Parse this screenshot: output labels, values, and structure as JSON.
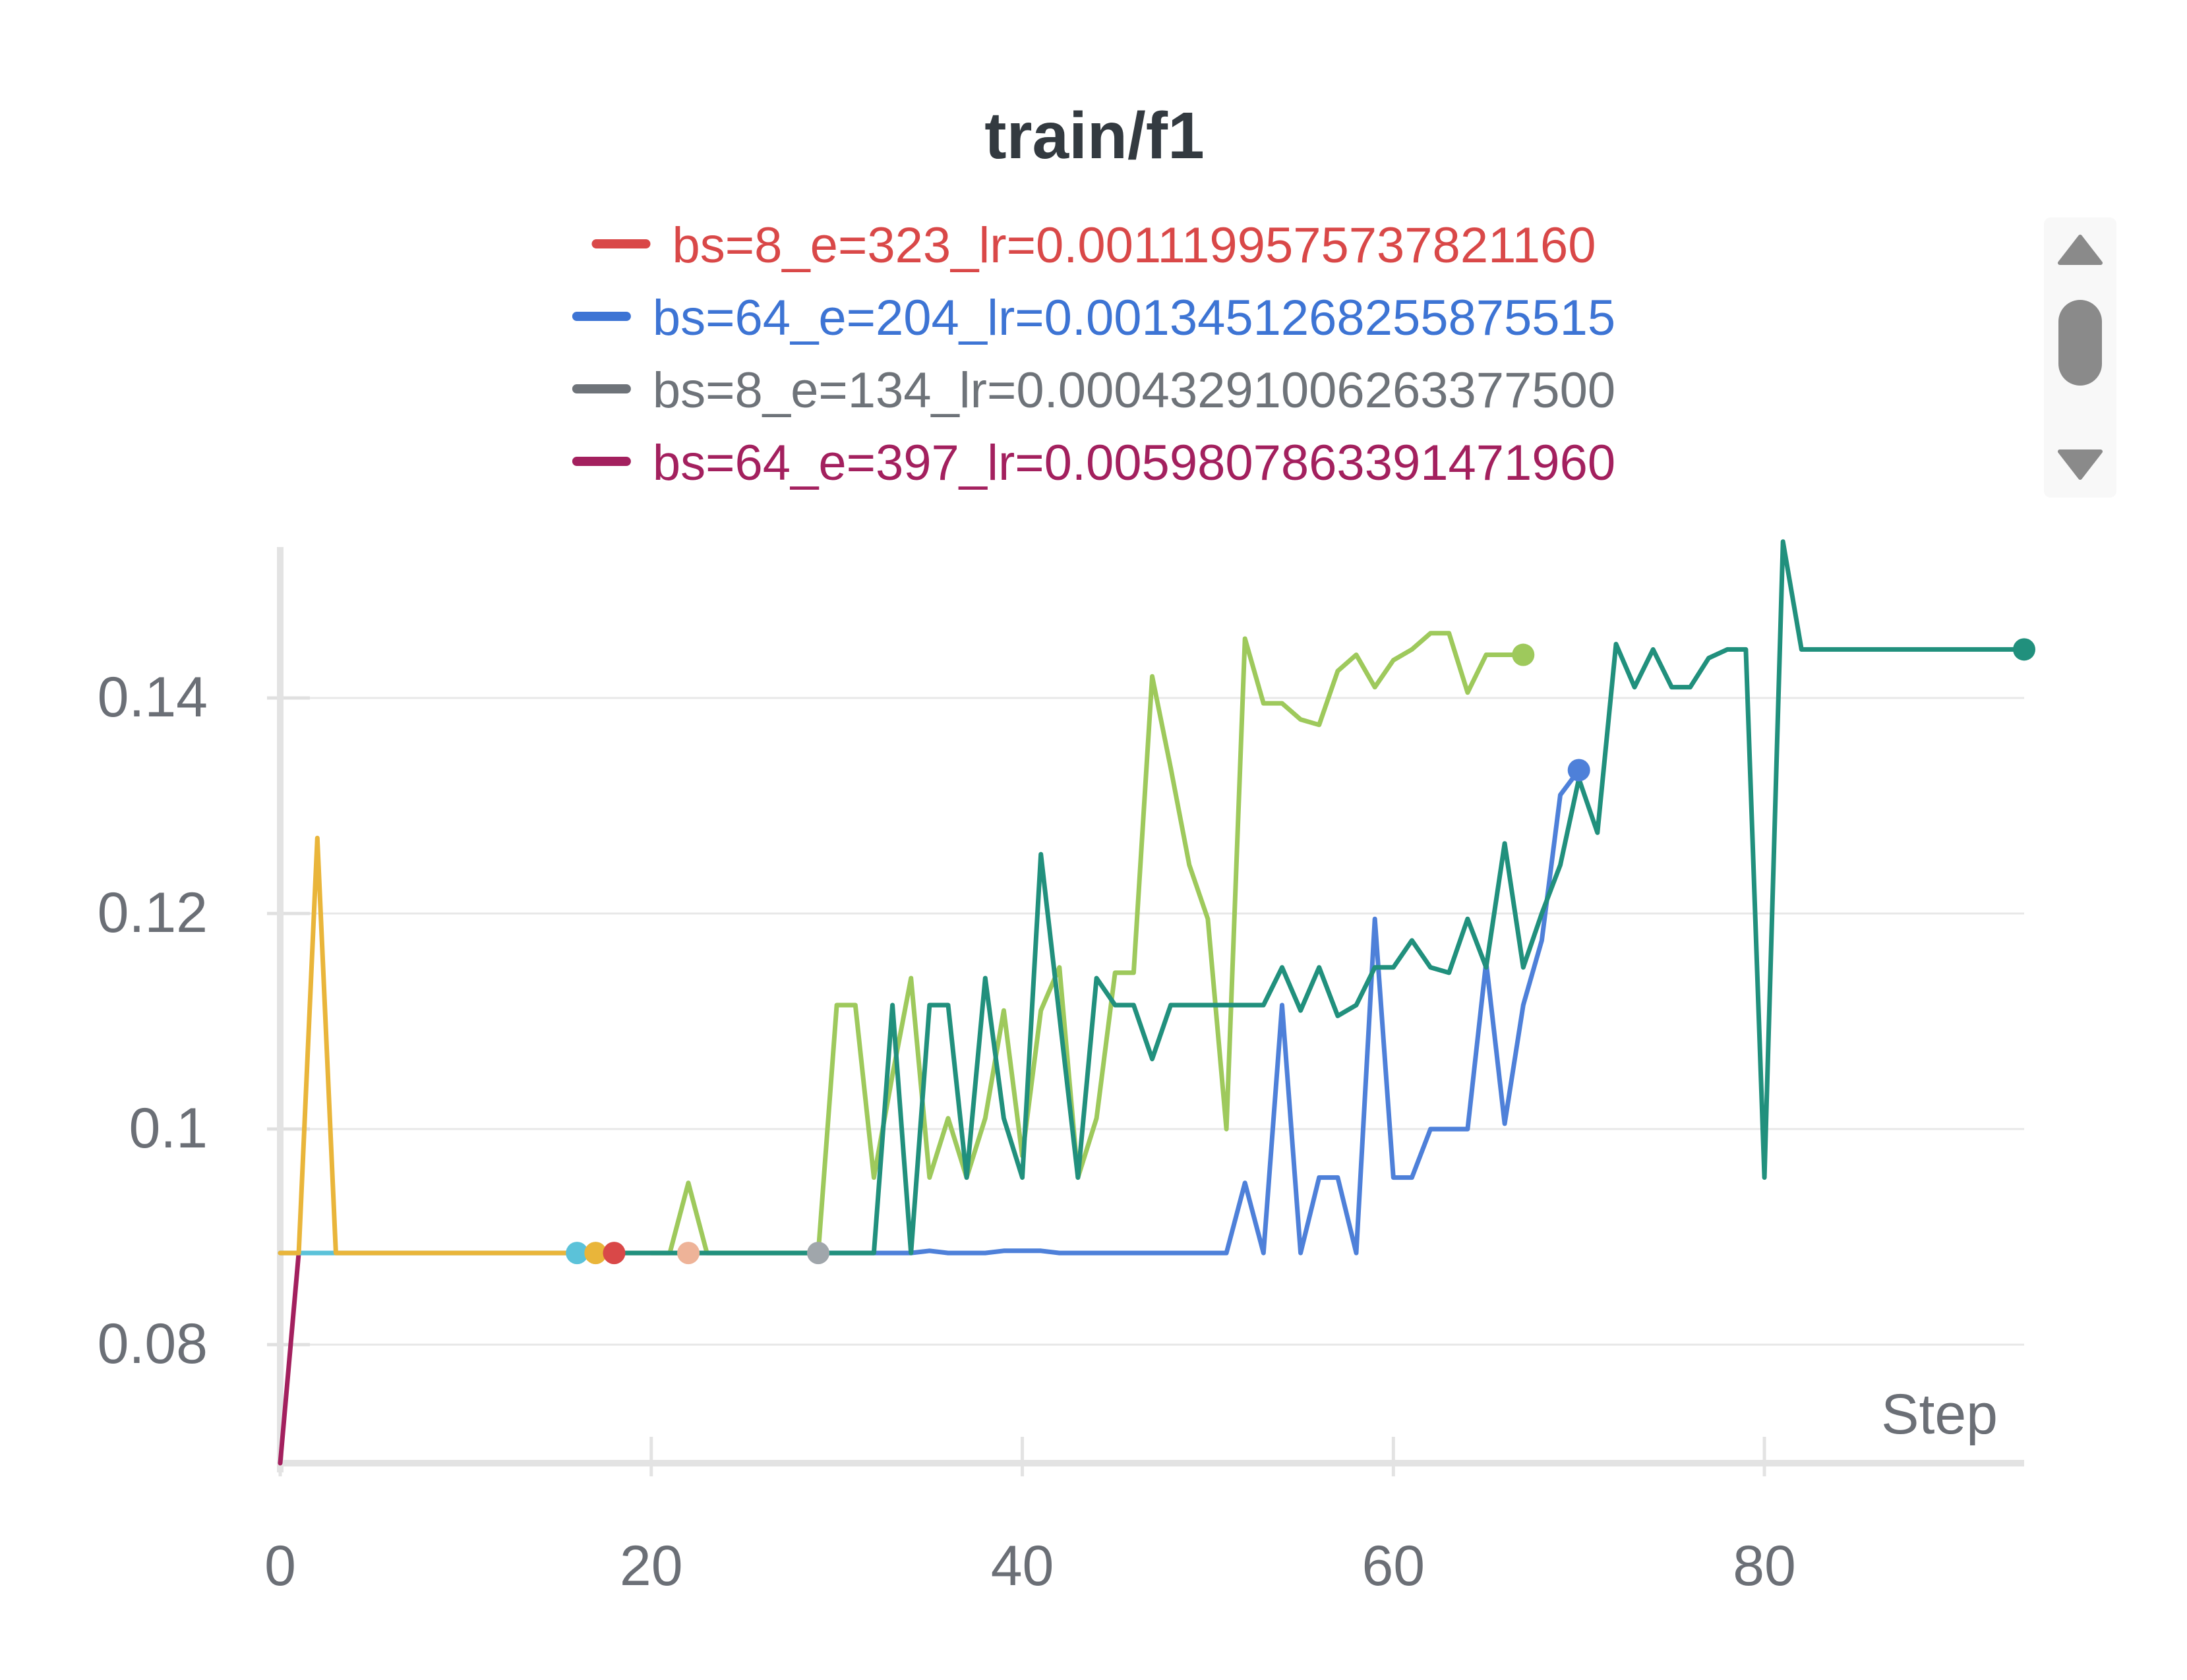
{
  "chart_data": {
    "type": "line",
    "title": "train/f1",
    "xlabel": "Step",
    "ylabel": "",
    "xlim": [
      0,
      94
    ],
    "ylim": [
      0.069,
      0.154
    ],
    "xticks": [
      0,
      20,
      40,
      60,
      80
    ],
    "yticks": [
      0.08,
      0.1,
      0.12,
      0.14
    ],
    "xtick_labels": [
      "0",
      "20",
      "40",
      "60",
      "80"
    ],
    "ytick_labels": [
      "0.08",
      "0.1",
      "0.12",
      "0.14"
    ],
    "grid": true,
    "legend_position": "top",
    "legend": [
      {
        "label": "bs=8_e=323_lr=0.0011199575737821160",
        "color": "#d94848"
      },
      {
        "label": "bs=64_e=204_lr=0.0013451268255875515",
        "color": "#3d74d4"
      },
      {
        "label": "bs=8_e=134_lr=0.00043291006263377500",
        "color": "#6e7379"
      },
      {
        "label": "bs=64_e=397_lr=0.0059807863391471960",
        "color": "#a3205e"
      }
    ],
    "series": [
      {
        "color": "#a3205e",
        "x": [
          0,
          1
        ],
        "y": [
          0.069,
          0.0885
        ]
      },
      {
        "color": "#5bc2d9",
        "x": [
          0,
          1,
          2,
          3,
          4,
          5,
          6,
          7,
          8,
          9,
          10,
          11,
          12,
          13,
          14,
          15,
          16
        ],
        "y": [
          0.0885,
          0.0885,
          0.0885,
          0.0885,
          0.0885,
          0.0885,
          0.0885,
          0.0885,
          0.0885,
          0.0885,
          0.0885,
          0.0885,
          0.0885,
          0.0885,
          0.0885,
          0.0885,
          0.0885
        ]
      },
      {
        "color": "#e9b53a",
        "x": [
          0,
          1,
          2,
          3,
          4,
          5,
          6,
          7,
          8,
          9,
          10,
          11,
          12,
          13,
          14,
          15,
          16,
          17
        ],
        "y": [
          0.0885,
          0.0885,
          0.127,
          0.0885,
          0.0885,
          0.0885,
          0.0885,
          0.0885,
          0.0885,
          0.0885,
          0.0885,
          0.0885,
          0.0885,
          0.0885,
          0.0885,
          0.0885,
          0.0885,
          0.0885
        ]
      },
      {
        "color": "#d94848",
        "x": [
          16,
          17,
          18
        ],
        "y": [
          0.0885,
          0.0885,
          0.0885
        ]
      },
      {
        "color": "#eeb398",
        "x": [
          18,
          19,
          20,
          21,
          22
        ],
        "y": [
          0.0885,
          0.0885,
          0.0885,
          0.0885,
          0.0885
        ]
      },
      {
        "color": "#a0a6ab",
        "x": [
          22,
          23,
          24,
          25,
          26,
          27,
          28,
          29
        ],
        "y": [
          0.0885,
          0.0885,
          0.0885,
          0.0885,
          0.0885,
          0.0885,
          0.0885,
          0.0885
        ]
      },
      {
        "color": "#9ec95c",
        "x": [
          20,
          21,
          22,
          23,
          24,
          25,
          26,
          27,
          28,
          29,
          30,
          31,
          32,
          33,
          34,
          35,
          36,
          37,
          38,
          39,
          40,
          41,
          42,
          43,
          44,
          45,
          46,
          47,
          48,
          49,
          50,
          51,
          52,
          53,
          54,
          55,
          56,
          57,
          58,
          59,
          60,
          61,
          62,
          63,
          64,
          65,
          66,
          67
        ],
        "y": [
          0.0885,
          0.0885,
          0.095,
          0.0885,
          0.0885,
          0.0885,
          0.0885,
          0.0885,
          0.0885,
          0.0885,
          0.1115,
          0.1115,
          0.0955,
          0.105,
          0.114,
          0.0955,
          0.101,
          0.0955,
          0.101,
          0.111,
          0.0975,
          0.111,
          0.115,
          0.0955,
          0.101,
          0.1145,
          0.1145,
          0.142,
          0.1335,
          0.1245,
          0.1195,
          0.1,
          0.1455,
          0.1395,
          0.1395,
          0.138,
          0.1375,
          0.1425,
          0.144,
          0.141,
          0.1435,
          0.1445,
          0.146,
          0.146,
          0.1405,
          0.144,
          0.144,
          0.144
        ]
      },
      {
        "color": "#4e80d9",
        "x": [
          29,
          30,
          31,
          32,
          33,
          34,
          35,
          36,
          37,
          38,
          39,
          40,
          41,
          42,
          43,
          44,
          45,
          46,
          47,
          48,
          49,
          50,
          51,
          52,
          53,
          54,
          55,
          56,
          57,
          58,
          59,
          60,
          61,
          62,
          63,
          64,
          65,
          66,
          67,
          68,
          69,
          70
        ],
        "y": [
          0.0885,
          0.0885,
          0.0885,
          0.0885,
          0.0885,
          0.0885,
          0.0887,
          0.0885,
          0.0885,
          0.0885,
          0.0887,
          0.0887,
          0.0887,
          0.0885,
          0.0885,
          0.0885,
          0.0885,
          0.0885,
          0.0885,
          0.0885,
          0.0885,
          0.0885,
          0.0885,
          0.095,
          0.0885,
          0.1115,
          0.0885,
          0.0955,
          0.0955,
          0.0885,
          0.1195,
          0.0955,
          0.0955,
          0.1,
          0.1,
          0.1,
          0.1155,
          0.1005,
          0.1115,
          0.1175,
          0.131,
          0.1333
        ]
      },
      {
        "color": "#21907d",
        "x": [
          17,
          18,
          19,
          20,
          21,
          22,
          23,
          24,
          25,
          26,
          27,
          28,
          29,
          30,
          31,
          32,
          33,
          34,
          35,
          36,
          37,
          38,
          39,
          40,
          41,
          42,
          43,
          44,
          45,
          46,
          47,
          48,
          49,
          50,
          51,
          52,
          53,
          54,
          55,
          56,
          57,
          58,
          59,
          60,
          61,
          62,
          63,
          64,
          65,
          66,
          67,
          68,
          69,
          70,
          71,
          72,
          73,
          74,
          75,
          76,
          77,
          78,
          79,
          80,
          81,
          82,
          83,
          84,
          85,
          86,
          87,
          88,
          89,
          90,
          91,
          92,
          93,
          94
        ],
        "y": [
          0.0885,
          0.0885,
          0.0885,
          0.0885,
          0.0885,
          0.0885,
          0.0885,
          0.0885,
          0.0885,
          0.0885,
          0.0885,
          0.0885,
          0.0885,
          0.0885,
          0.0885,
          0.0885,
          0.1115,
          0.0885,
          0.1115,
          0.1115,
          0.0955,
          0.114,
          0.101,
          0.0955,
          0.1255,
          0.1105,
          0.0955,
          0.114,
          0.1115,
          0.1115,
          0.1065,
          0.1115,
          0.1115,
          0.1115,
          0.1115,
          0.1115,
          0.1115,
          0.115,
          0.111,
          0.115,
          0.1105,
          0.1115,
          0.115,
          0.115,
          0.1175,
          0.115,
          0.1145,
          0.1195,
          0.115,
          0.1265,
          0.115,
          0.12,
          0.1245,
          0.1325,
          0.1275,
          0.145,
          0.141,
          0.1445,
          0.141,
          0.141,
          0.1437,
          0.1445,
          0.1445,
          0.0955,
          0.1545,
          0.1445,
          0.1445,
          0.1445,
          0.1445,
          0.1445,
          0.1445,
          0.1445,
          0.1445,
          0.1445,
          0.1445,
          0.1445,
          0.1445,
          0.1445
        ]
      }
    ],
    "end_markers": [
      {
        "x": 16,
        "y": 0.0885,
        "color": "#5bc2d9"
      },
      {
        "x": 17,
        "y": 0.0885,
        "color": "#e9b53a"
      },
      {
        "x": 18,
        "y": 0.0885,
        "color": "#d94848"
      },
      {
        "x": 22,
        "y": 0.0885,
        "color": "#eeb398"
      },
      {
        "x": 29,
        "y": 0.0885,
        "color": "#a0a6ab"
      },
      {
        "x": 67,
        "y": 0.144,
        "color": "#9ec95c"
      },
      {
        "x": 70,
        "y": 0.1333,
        "color": "#4e80d9"
      },
      {
        "x": 94,
        "y": 0.1445,
        "color": "#21907d"
      }
    ]
  },
  "controls": {
    "scroll_up_icon": "triangle-up-icon",
    "scroll_down_icon": "triangle-down-icon"
  }
}
